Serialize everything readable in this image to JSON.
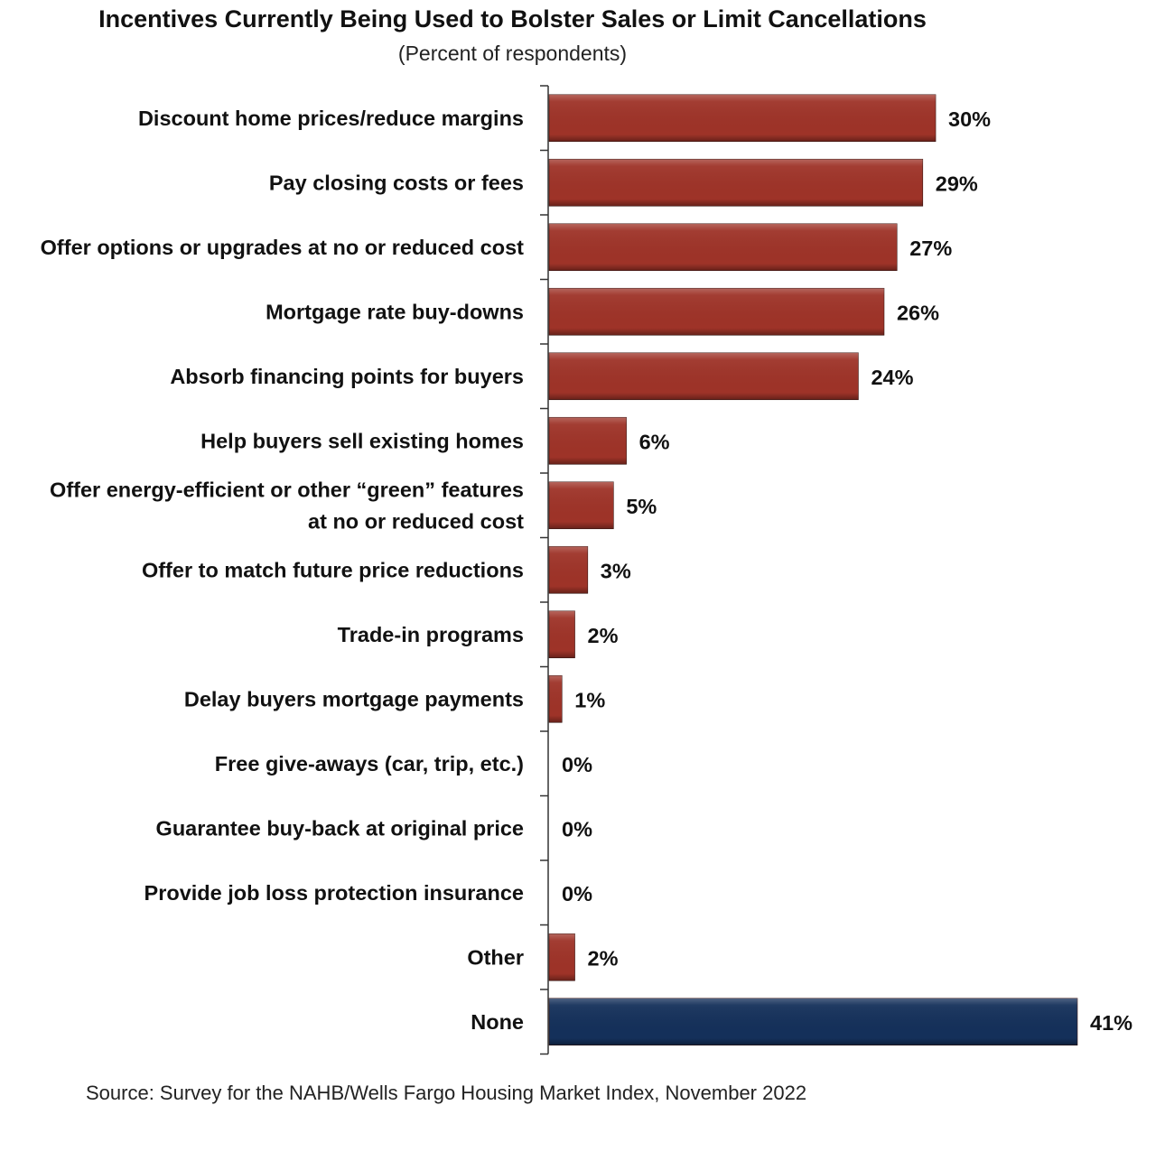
{
  "chart_data": {
    "type": "bar",
    "orientation": "horizontal",
    "title": "Incentives Currently Being Used to Bolster Sales or Limit Cancellations",
    "subtitle": "(Percent of respondents)",
    "categories": [
      "Discount home prices/reduce margins",
      "Pay closing costs or fees",
      "Offer options or upgrades at no or reduced cost",
      "Mortgage rate buy-downs",
      "Absorb financing points for buyers",
      "Help buyers sell existing homes",
      "Offer energy-efficient or other “green” features\nat no or reduced cost",
      "Offer to match future price reductions",
      "Trade-in programs",
      "Delay buyers mortgage payments",
      "Free give-aways (car, trip, etc.)",
      "Guarantee buy-back at original price",
      "Provide job loss protection insurance",
      "Other",
      "None"
    ],
    "values": [
      30,
      29,
      27,
      26,
      24,
      6,
      5,
      3,
      2,
      1,
      0,
      0,
      0,
      2,
      41
    ],
    "value_labels": [
      "30%",
      "29%",
      "27%",
      "26%",
      "24%",
      "6%",
      "5%",
      "3%",
      "2%",
      "1%",
      "0%",
      "0%",
      "0%",
      "2%",
      "41%"
    ],
    "bar_colors": [
      "#9e3328",
      "#9e3328",
      "#9e3328",
      "#9e3328",
      "#9e3328",
      "#9e3328",
      "#9e3328",
      "#9e3328",
      "#9e3328",
      "#9e3328",
      "#9e3328",
      "#9e3328",
      "#9e3328",
      "#9e3328",
      "#14305a"
    ],
    "xlim": [
      0,
      41
    ],
    "grid": false,
    "legend": "none",
    "source": "Source: Survey for the NAHB/Wells Fargo Housing Market Index, November 2022"
  }
}
